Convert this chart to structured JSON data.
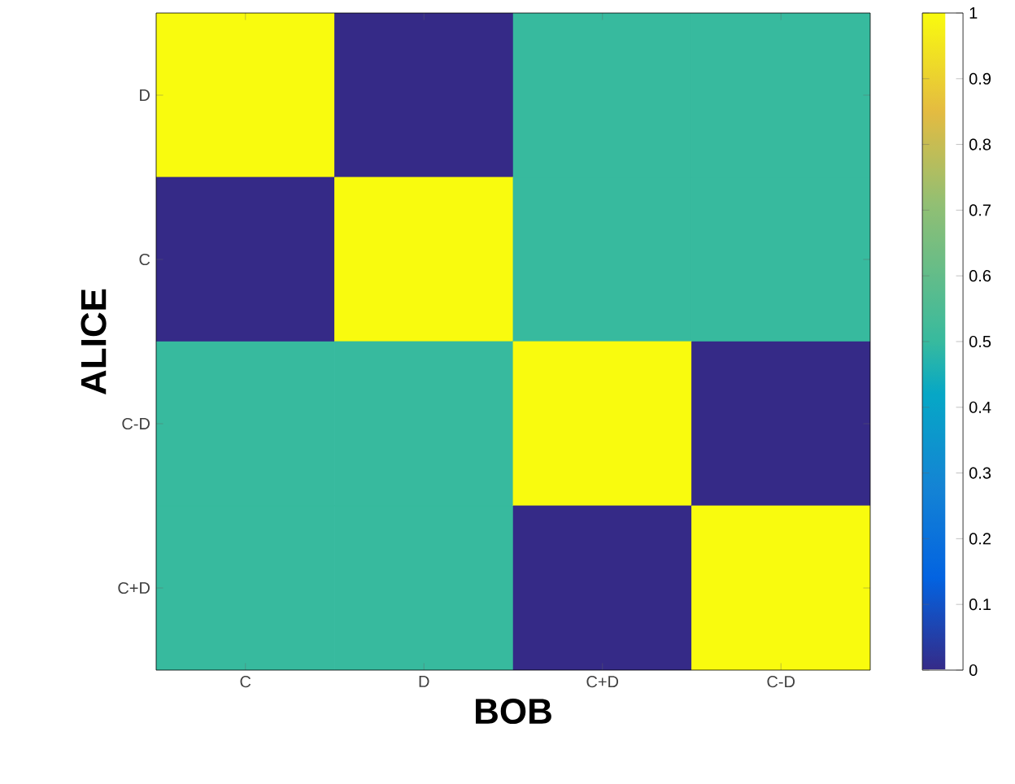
{
  "chart_data": {
    "type": "heatmap",
    "xlabel": "BOB",
    "ylabel": "ALICE",
    "categories": [
      "C",
      "D",
      "C+D",
      "C-D"
    ],
    "y_categories": [
      "D",
      "C",
      "C-D",
      "C+D"
    ],
    "cells": [
      [
        1,
        0,
        0.5,
        0.5
      ],
      [
        0,
        1,
        0.5,
        0.5
      ],
      [
        0.5,
        0.5,
        1,
        0
      ],
      [
        0.5,
        0.5,
        0,
        1
      ]
    ],
    "clim": [
      0,
      1
    ],
    "cticks": [
      0,
      0.1,
      0.2,
      0.3,
      0.4,
      0.5,
      0.6,
      0.7,
      0.8,
      0.9,
      1
    ]
  }
}
